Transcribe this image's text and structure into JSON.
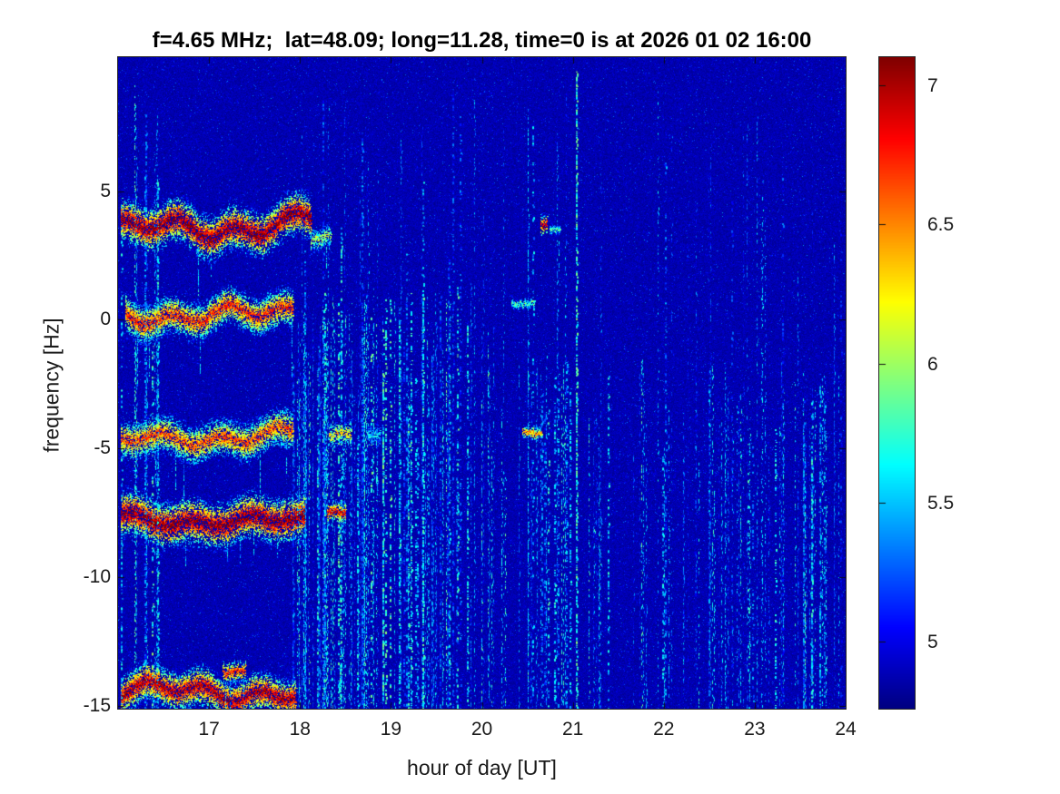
{
  "colors": {
    "figure_bg": "#ffffff",
    "text": "#1a1a1a",
    "frame": "#262626",
    "plot_bg_deep_blue": "#000090"
  },
  "chart_data": {
    "type": "heatmap",
    "subtype": "doppler-spectrogram",
    "title": "f=4.65 MHz;  lat=48.09; long=11.28, time=0 is at 2026 01 02 16:00",
    "xlabel": "hour of day [UT]",
    "ylabel": "frequency [Hz]",
    "x_range": [
      16,
      24
    ],
    "y_range": [
      -15.1,
      10.2
    ],
    "x_ticks": [
      {
        "value": 17,
        "label": "17"
      },
      {
        "value": 18,
        "label": "18"
      },
      {
        "value": 19,
        "label": "19"
      },
      {
        "value": 20,
        "label": "20"
      },
      {
        "value": 21,
        "label": "21"
      },
      {
        "value": 22,
        "label": "22"
      },
      {
        "value": 23,
        "label": "23"
      },
      {
        "value": 24,
        "label": "24"
      }
    ],
    "y_ticks": [
      {
        "value": 5,
        "label": "5"
      },
      {
        "value": 0,
        "label": "0"
      },
      {
        "value": -5,
        "label": "-5"
      },
      {
        "value": -10,
        "label": "-10"
      },
      {
        "value": -15,
        "label": "-15"
      }
    ],
    "colorbar": {
      "colormap": "jet",
      "vmin": 4.76,
      "vmax": 7.1,
      "ticks": [
        {
          "value": 7,
          "label": "7"
        },
        {
          "value": 6.5,
          "label": "6.5"
        },
        {
          "value": 6,
          "label": "6"
        },
        {
          "value": 5.5,
          "label": "5.5"
        },
        {
          "value": 5,
          "label": "5"
        }
      ]
    },
    "seed": 1337,
    "noise": {
      "background_value": 4.8,
      "speckle_fraction": 0.07,
      "speckle_extra_max": 0.55
    },
    "streak_clusters": [
      {
        "h0": 16.02,
        "h1": 16.45,
        "count": 12,
        "f_top": 9.8,
        "f_bot": -15.1,
        "v_lo": 5.25,
        "v_hi": 5.85,
        "density": 0.5
      },
      {
        "h0": 17.9,
        "h1": 20.15,
        "count": 90,
        "f_top": 1.5,
        "f_bot": -15.1,
        "v_lo": 5.2,
        "v_hi": 5.8,
        "density": 0.45
      },
      {
        "h0": 17.9,
        "h1": 20.15,
        "count": 20,
        "f_top": 9.8,
        "f_bot": -15.1,
        "v_lo": 5.1,
        "v_hi": 5.55,
        "density": 0.33
      },
      {
        "h0": 20.15,
        "h1": 23.97,
        "count": 80,
        "f_top": -1.0,
        "f_bot": -15.1,
        "v_lo": 5.1,
        "v_hi": 5.7,
        "density": 0.38
      },
      {
        "h0": 20.15,
        "h1": 23.97,
        "count": 28,
        "f_top": 9.5,
        "f_bot": -15.1,
        "v_lo": 5.0,
        "v_hi": 5.5,
        "density": 0.28
      }
    ],
    "highlight_streaks": [
      {
        "hour": 21.03,
        "f_top": 9.8,
        "f_bot": -15.1,
        "v": 5.75,
        "density": 0.7,
        "w": 2
      },
      {
        "hour": 20.82,
        "f_top": 8.0,
        "f_bot": -13.0,
        "v": 5.4,
        "density": 0.4,
        "w": 1
      },
      {
        "hour": 19.35,
        "f_top": 2.0,
        "f_bot": -15.1,
        "v": 5.7,
        "density": 0.6,
        "w": 2
      },
      {
        "hour": 18.45,
        "f_top": 4.5,
        "f_bot": -15.1,
        "v": 5.6,
        "density": 0.55,
        "w": 2
      },
      {
        "hour": 23.62,
        "f_top": -2.0,
        "f_bot": -15.1,
        "v": 5.6,
        "density": 0.5,
        "w": 2
      }
    ],
    "bands": [
      {
        "name": "upper-trace-+3.7Hz",
        "f_center": 3.75,
        "wiggle_amp": 0.45,
        "h0": 16.03,
        "h1": 18.12,
        "peak_v": 7.08,
        "fringe_hz": 1.0,
        "patches": [
          {
            "h0": 18.12,
            "h1": 18.34,
            "f": 3.1,
            "v": 6.1
          }
        ]
      },
      {
        "name": "trace-+0.4Hz",
        "f_center": 0.35,
        "wiggle_amp": 0.4,
        "h0": 16.08,
        "h1": 17.92,
        "peak_v": 6.75,
        "fringe_hz": 0.85,
        "patches": []
      },
      {
        "name": "trace--4.5Hz",
        "f_center": -4.5,
        "wiggle_amp": 0.32,
        "h0": 16.03,
        "h1": 17.92,
        "peak_v": 6.65,
        "fringe_hz": 0.85,
        "patches": [
          {
            "h0": 18.32,
            "h1": 18.56,
            "f": -4.35,
            "v": 6.35
          },
          {
            "h0": 18.75,
            "h1": 18.88,
            "f": -4.4,
            "v": 5.6
          }
        ]
      },
      {
        "name": "strong-trace--7.7Hz",
        "f_center": -7.7,
        "wiggle_amp": 0.26,
        "h0": 16.03,
        "h1": 18.05,
        "peak_v": 7.1,
        "fringe_hz": 1.05,
        "patches": [
          {
            "h0": 18.3,
            "h1": 18.5,
            "f": -7.6,
            "v": 6.9
          }
        ]
      },
      {
        "name": "bottom-trace--14.6Hz",
        "f_center": -14.55,
        "wiggle_amp": 0.4,
        "h0": 16.03,
        "h1": 17.95,
        "peak_v": 7.0,
        "fringe_hz": 0.9,
        "patches": [
          {
            "h0": 17.15,
            "h1": 17.4,
            "f": -13.7,
            "v": 6.8
          }
        ]
      }
    ],
    "spots": [
      {
        "hour": 20.68,
        "freq": 3.7,
        "v": 7.0,
        "w_hours": 0.07,
        "fringe_hz": 0.45
      },
      {
        "hour": 20.8,
        "freq": 3.55,
        "v": 5.85,
        "w_hours": 0.12,
        "fringe_hz": 0.2
      },
      {
        "hour": 20.45,
        "freq": 0.6,
        "v": 5.85,
        "w_hours": 0.26,
        "fringe_hz": 0.22
      },
      {
        "hour": 20.55,
        "freq": -4.4,
        "v": 6.55,
        "w_hours": 0.22,
        "fringe_hz": 0.28
      }
    ]
  }
}
